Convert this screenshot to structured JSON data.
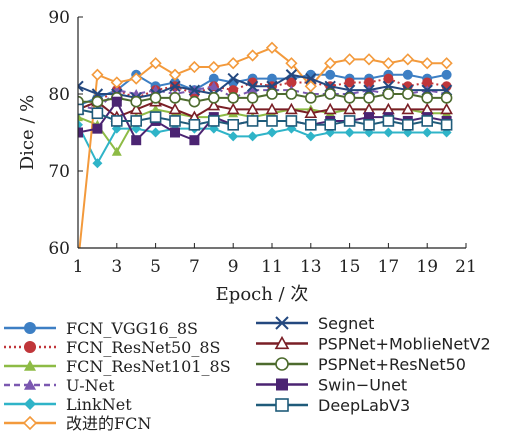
{
  "chart_data": {
    "type": "line",
    "xlabel": "Epoch / 次",
    "ylabel": "Dice / %",
    "xlim": [
      1,
      21
    ],
    "ylim": [
      60,
      90
    ],
    "xticks": [
      "1",
      "3",
      "5",
      "7",
      "9",
      "11",
      "13",
      "15",
      "17",
      "19",
      "21"
    ],
    "yticks": [
      "60",
      "70",
      "80",
      "90"
    ],
    "grid": false,
    "legend_position": "bottom, two columns",
    "x": [
      1,
      2,
      3,
      4,
      5,
      6,
      7,
      8,
      9,
      10,
      11,
      12,
      13,
      14,
      15,
      16,
      17,
      18,
      19,
      20
    ],
    "series": [
      {
        "name": "FCN_VGG16_8S",
        "color": "#3d7fc4",
        "marker": "circle",
        "line": "solid",
        "values": [
          78.5,
          79.5,
          80.5,
          82.5,
          81.0,
          81.5,
          80.5,
          82.0,
          81.5,
          82.0,
          82.0,
          82.0,
          82.5,
          82.5,
          82.0,
          82.0,
          82.5,
          82.5,
          82.0,
          82.5
        ]
      },
      {
        "name": "FCN_ResNet50_8S",
        "color": "#c0363a",
        "marker": "circle",
        "line": "dotted",
        "values": [
          78.0,
          79.0,
          80.5,
          79.5,
          80.5,
          81.0,
          80.0,
          81.0,
          80.5,
          81.5,
          81.0,
          81.5,
          81.5,
          81.0,
          81.5,
          81.5,
          82.0,
          81.0,
          81.5,
          81.0
        ]
      },
      {
        "name": "FCN_ResNet101_8S",
        "color": "#8dbb45",
        "marker": "triangle-up",
        "line": "solid",
        "values": [
          77.0,
          76.0,
          72.5,
          77.0,
          78.0,
          77.5,
          77.0,
          77.0,
          77.5,
          77.0,
          77.5,
          78.0,
          78.0,
          77.5,
          78.0,
          78.0,
          78.0,
          78.0,
          77.5,
          77.5
        ]
      },
      {
        "name": "U-Net",
        "color": "#7b58b0",
        "marker": "triangle-up",
        "line": "dashed",
        "values": [
          78.5,
          78.0,
          80.5,
          80.0,
          80.5,
          80.0,
          80.5,
          81.0,
          79.5,
          80.5,
          80.5,
          80.5,
          80.0,
          80.0,
          80.0,
          80.5,
          80.0,
          80.0,
          80.5,
          80.0
        ]
      },
      {
        "name": "LinkNet",
        "color": "#2fb4c8",
        "marker": "diamond",
        "line": "solid",
        "values": [
          76.0,
          71.0,
          75.5,
          75.5,
          75.0,
          75.5,
          75.5,
          75.5,
          74.5,
          74.5,
          75.0,
          75.5,
          74.5,
          75.0,
          75.0,
          75.0,
          75.0,
          75.0,
          75.0,
          75.0
        ]
      },
      {
        "name": "改进的FCN",
        "color": "#f39a3c",
        "marker": "diamond-open",
        "line": "solid",
        "values": [
          58.0,
          82.5,
          81.5,
          82.0,
          84.0,
          82.5,
          83.5,
          83.5,
          84.0,
          85.0,
          86.0,
          84.0,
          81.0,
          84.0,
          84.5,
          84.5,
          84.0,
          84.5,
          84.0,
          84.0
        ]
      },
      {
        "name": "Segnet",
        "color": "#24487f",
        "marker": "x",
        "line": "solid",
        "values": [
          81.0,
          80.0,
          80.0,
          79.5,
          80.0,
          81.0,
          80.5,
          80.0,
          82.0,
          81.0,
          81.0,
          82.5,
          82.0,
          81.0,
          80.5,
          80.5,
          81.0,
          80.5,
          80.5,
          80.5
        ]
      },
      {
        "name": "PSPNet+MoblieNetV2",
        "color": "#7a1f26",
        "marker": "triangle-open",
        "line": "solid",
        "values": [
          78.0,
          79.0,
          77.0,
          78.0,
          79.0,
          78.0,
          77.0,
          78.5,
          78.0,
          78.0,
          78.0,
          78.0,
          77.5,
          78.0,
          78.0,
          78.0,
          78.0,
          78.0,
          78.0,
          78.0
        ]
      },
      {
        "name": "PSPNet+ResNet50",
        "color": "#4d6b2e",
        "marker": "circle-open",
        "line": "solid",
        "values": [
          79.0,
          79.0,
          79.5,
          79.0,
          79.5,
          79.5,
          79.0,
          79.5,
          79.5,
          79.5,
          80.0,
          80.0,
          79.5,
          80.0,
          79.5,
          79.5,
          80.0,
          80.0,
          79.5,
          79.5
        ]
      },
      {
        "name": "Swin-Unet",
        "color": "#4b2472",
        "marker": "square",
        "line": "solid",
        "values": [
          75.0,
          75.5,
          79.0,
          74.0,
          76.5,
          75.0,
          74.0,
          77.0,
          76.0,
          76.5,
          76.5,
          76.5,
          76.0,
          76.5,
          76.5,
          77.0,
          77.0,
          76.5,
          77.0,
          76.5
        ]
      },
      {
        "name": "DeepLabV3",
        "color": "#1f5b7a",
        "marker": "square-open",
        "line": "solid",
        "values": [
          78.0,
          77.5,
          76.5,
          76.5,
          77.0,
          76.5,
          76.0,
          76.5,
          76.0,
          76.5,
          76.5,
          76.5,
          76.0,
          76.0,
          76.5,
          76.0,
          76.5,
          76.0,
          76.5,
          76.0
        ]
      }
    ]
  },
  "legend": {
    "left": [
      {
        "label": "FCN_VGG16_8S",
        "series": 0
      },
      {
        "label": "FCN_ResNet50_8S",
        "series": 1
      },
      {
        "label": "FCN_ResNet101_8S",
        "series": 2
      },
      {
        "label": "U-Net",
        "series": 3
      },
      {
        "label": "LinkNet",
        "series": 4
      },
      {
        "label": "改进的FCN",
        "series": 5
      }
    ],
    "right": [
      {
        "label": "Segnet",
        "series": 6
      },
      {
        "label": "PSPNet+MoblieNetV2",
        "series": 7
      },
      {
        "label": "PSPNet+ResNet50",
        "series": 8
      },
      {
        "label": "Swin−Unet",
        "series": 9
      },
      {
        "label": "DeepLabV3",
        "series": 10
      }
    ]
  }
}
